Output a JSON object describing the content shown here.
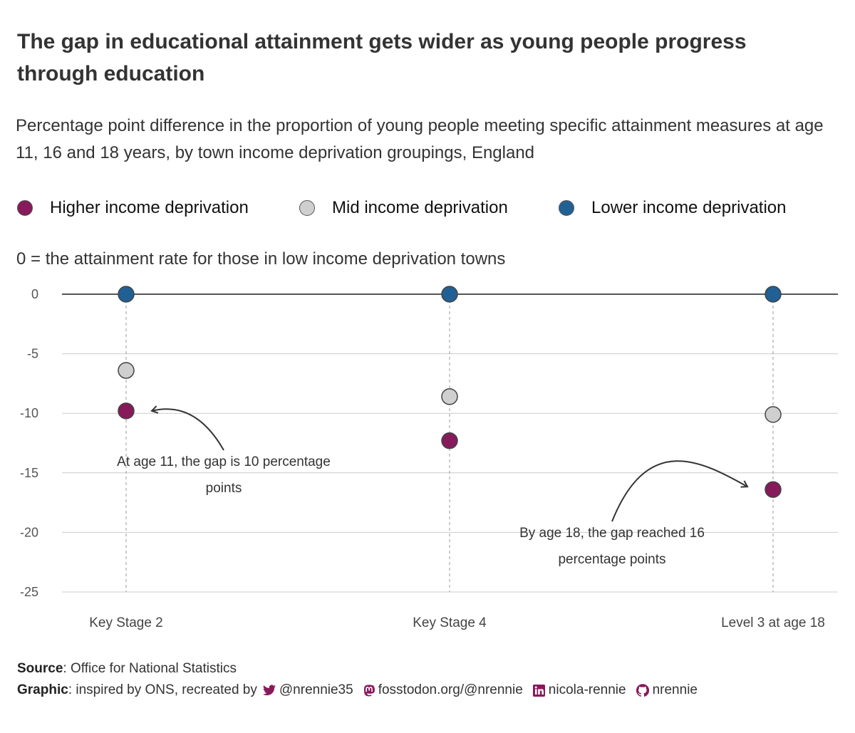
{
  "title": "The gap in educational attainment gets wider as young people progress through education",
  "subtitle": "Percentage point difference in the proportion of young people meeting specific attainment measures at age 11, 16 and 18 years, by town income deprivation groupings, England",
  "zero_note": "0 = the attainment rate for those in low income deprivation towns",
  "legend": [
    {
      "label": "Higher income deprivation",
      "color": "#871A5B"
    },
    {
      "label": "Mid income deprivation",
      "color": "#CFCFCF"
    },
    {
      "label": "Lower income deprivation",
      "color": "#206095"
    }
  ],
  "chart_data": {
    "type": "scatter",
    "categories": [
      "Key Stage 2",
      "Key Stage 4",
      "Level 3 at age 18"
    ],
    "series": [
      {
        "name": "Higher income deprivation",
        "color": "#871A5B",
        "values": [
          -9.8,
          -12.3,
          -16.4
        ]
      },
      {
        "name": "Mid income deprivation",
        "color": "#CFCFCF",
        "values": [
          -6.4,
          -8.6,
          -10.1
        ]
      },
      {
        "name": "Lower income deprivation",
        "color": "#206095",
        "values": [
          0,
          0,
          0
        ]
      }
    ],
    "ylim": [
      -25,
      0
    ],
    "yticks": [
      0,
      -5,
      -10,
      -15,
      -20,
      -25
    ],
    "grid": true,
    "legend_position": "top",
    "annotations": [
      {
        "lines": [
          "At age 11, the gap is 10 percentage",
          "points"
        ],
        "category": "Key Stage 2",
        "points_to": -9.8
      },
      {
        "lines": [
          "By age 18, the gap reached 16",
          "percentage points"
        ],
        "category": "Level 3 at age 18",
        "points_to": -16.4
      }
    ]
  },
  "caption": {
    "source_label": "Source",
    "source_text": ": Office for National Statistics",
    "graphic_label": "Graphic",
    "graphic_text": ": inspired by ONS, recreated by",
    "socials": [
      {
        "icon": "twitter-icon",
        "text": "@nrennie35"
      },
      {
        "icon": "mastodon-icon",
        "text": "fosstodon.org/@nrennie"
      },
      {
        "icon": "linkedin-icon",
        "text": "nicola-rennie"
      },
      {
        "icon": "github-icon",
        "text": "nrennie"
      }
    ]
  }
}
